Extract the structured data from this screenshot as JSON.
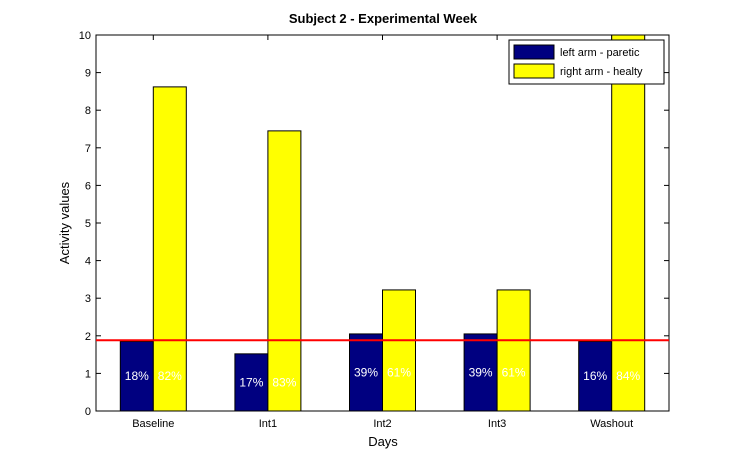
{
  "chart_data": {
    "type": "bar",
    "title": "Subject 2 - Experimental Week",
    "xlabel": "Days",
    "ylabel": "Activity values",
    "categories": [
      "Baseline",
      "Int1",
      "Int2",
      "Int3",
      "Washout"
    ],
    "series": [
      {
        "name": "left arm - paretic",
        "color": "#000080",
        "values": [
          1.85,
          1.52,
          2.05,
          2.05,
          1.85
        ],
        "labels": [
          "18%",
          "17%",
          "39%",
          "39%",
          "16%"
        ]
      },
      {
        "name": "right arm - healty",
        "color": "#ffff00",
        "values": [
          8.62,
          7.45,
          3.22,
          3.22,
          10.0
        ],
        "labels": [
          "82%",
          "83%",
          "61%",
          "61%",
          "84%"
        ]
      }
    ],
    "reference_line": {
      "y": 1.88,
      "color": "#ff0000"
    },
    "ylim": [
      0,
      10
    ],
    "yticks": [
      0,
      1,
      2,
      3,
      4,
      5,
      6,
      7,
      8,
      9,
      10
    ],
    "legend_position": "top-right",
    "grid": false
  }
}
